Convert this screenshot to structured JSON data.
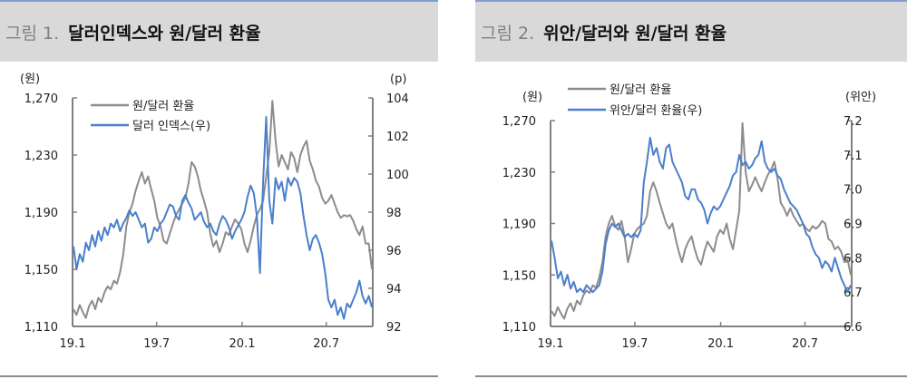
{
  "figures": [
    {
      "fig_num": "그림 1.",
      "title": "달러인덱스와 원/달러 환율"
    },
    {
      "fig_num": "그림 2.",
      "title": "위안/달러와 원/달러 환율"
    }
  ],
  "colors": {
    "krw": "#8c8c8c",
    "blue": "#4a7fcb",
    "axis": "#808080",
    "title_bg": "#d9d9d9",
    "title_border": "#7f9fd0"
  },
  "chart_data": [
    {
      "type": "line",
      "title": "달러인덱스와 원/달러 환율",
      "xlabel": "",
      "ylabel_left": "(원)",
      "ylabel_right": "(p)",
      "x_ticks": [
        "19.1",
        "19.7",
        "20.1",
        "20.7"
      ],
      "y_left_ticks": [
        "1,110",
        "1,150",
        "1,190",
        "1,230",
        "1,270"
      ],
      "y_left_range": [
        1110,
        1270
      ],
      "y_right_ticks": [
        "92",
        "94",
        "96",
        "98",
        "100",
        "102",
        "104"
      ],
      "y_right_range": [
        92,
        104
      ],
      "legend_position": "top-left",
      "grid": false,
      "series": [
        {
          "name": "원/달러 환율",
          "axis": "left",
          "color": "#8c8c8c",
          "values": [
            1122,
            1118,
            1125,
            1120,
            1116,
            1124,
            1128,
            1122,
            1130,
            1127,
            1134,
            1138,
            1136,
            1142,
            1140,
            1148,
            1160,
            1180,
            1190,
            1196,
            1205,
            1212,
            1218,
            1210,
            1215,
            1206,
            1198,
            1186,
            1180,
            1170,
            1168,
            1175,
            1182,
            1188,
            1192,
            1196,
            1200,
            1210,
            1225,
            1222,
            1215,
            1205,
            1198,
            1190,
            1175,
            1166,
            1170,
            1162,
            1168,
            1176,
            1174,
            1180,
            1185,
            1182,
            1178,
            1168,
            1162,
            1170,
            1180,
            1188,
            1192,
            1198,
            1215,
            1232,
            1268,
            1240,
            1222,
            1230,
            1225,
            1220,
            1232,
            1228,
            1218,
            1230,
            1236,
            1240,
            1226,
            1220,
            1212,
            1208,
            1200,
            1196,
            1198,
            1202,
            1196,
            1190,
            1186,
            1188,
            1187,
            1188,
            1184,
            1178,
            1174,
            1180,
            1168,
            1168,
            1150
          ]
        },
        {
          "name": "달러 인덱스(우)",
          "axis": "right",
          "color": "#4a7fcb",
          "values": [
            96.2,
            95.0,
            95.8,
            95.4,
            96.4,
            96.0,
            96.8,
            96.2,
            97.0,
            96.5,
            97.2,
            96.8,
            97.4,
            97.2,
            97.6,
            97.0,
            97.4,
            97.7,
            98.1,
            97.8,
            98.0,
            97.6,
            97.2,
            97.4,
            96.4,
            96.6,
            97.2,
            97.0,
            97.4,
            97.6,
            98.0,
            98.4,
            98.3,
            97.8,
            97.6,
            98.6,
            98.9,
            98.5,
            98.2,
            97.6,
            97.8,
            98.0,
            97.5,
            97.2,
            97.4,
            97.0,
            96.8,
            97.4,
            97.8,
            97.6,
            97.2,
            96.6,
            97.0,
            97.3,
            97.6,
            98.0,
            98.8,
            99.4,
            99.0,
            97.8,
            94.8,
            99.6,
            103.0,
            98.6,
            97.4,
            99.8,
            99.2,
            99.6,
            98.6,
            99.8,
            99.4,
            99.8,
            99.6,
            99.0,
            97.8,
            96.8,
            96.0,
            96.6,
            96.8,
            96.4,
            95.8,
            94.8,
            93.4,
            93.0,
            93.4,
            92.6,
            93.0,
            92.4,
            93.2,
            93.0,
            93.4,
            93.8,
            94.4,
            93.6,
            93.2,
            93.6,
            93.0
          ]
        }
      ]
    },
    {
      "type": "line",
      "title": "위안/달러와 원/달러 환율",
      "xlabel": "",
      "ylabel_left": "(원)",
      "ylabel_right": "(위안)",
      "x_ticks": [
        "19.1",
        "19.7",
        "20.1",
        "20.7"
      ],
      "y_left_ticks": [
        "1,110",
        "1,150",
        "1,190",
        "1,230",
        "1,270"
      ],
      "y_left_range": [
        1110,
        1270
      ],
      "y_right_ticks": [
        "6.6",
        "6.7",
        "6.8",
        "6.9",
        "7.0",
        "7.1",
        "7.2"
      ],
      "y_right_range": [
        6.6,
        7.2
      ],
      "legend_position": "top-left",
      "grid": false,
      "series": [
        {
          "name": "원/달러 환율",
          "axis": "left",
          "color": "#8c8c8c",
          "values": [
            1122,
            1118,
            1125,
            1120,
            1116,
            1124,
            1128,
            1122,
            1130,
            1127,
            1134,
            1138,
            1136,
            1142,
            1140,
            1148,
            1160,
            1180,
            1190,
            1196,
            1188,
            1185,
            1192,
            1180,
            1160,
            1170,
            1182,
            1186,
            1188,
            1190,
            1196,
            1215,
            1222,
            1215,
            1206,
            1198,
            1190,
            1186,
            1190,
            1178,
            1168,
            1160,
            1170,
            1176,
            1180,
            1170,
            1162,
            1158,
            1168,
            1176,
            1172,
            1168,
            1180,
            1185,
            1182,
            1190,
            1178,
            1170,
            1185,
            1200,
            1268,
            1230,
            1215,
            1220,
            1226,
            1220,
            1215,
            1222,
            1228,
            1232,
            1238,
            1225,
            1206,
            1202,
            1196,
            1202,
            1196,
            1192,
            1188,
            1190,
            1186,
            1184,
            1188,
            1186,
            1188,
            1192,
            1190,
            1178,
            1176,
            1170,
            1172,
            1168,
            1160,
            1162,
            1150
          ]
        },
        {
          "name": "위안/달러 환율(우)",
          "axis": "right",
          "color": "#4a7fcb",
          "values": [
            6.85,
            6.8,
            6.74,
            6.76,
            6.72,
            6.75,
            6.71,
            6.73,
            6.7,
            6.71,
            6.7,
            6.72,
            6.71,
            6.7,
            6.71,
            6.72,
            6.76,
            6.84,
            6.88,
            6.9,
            6.89,
            6.9,
            6.88,
            6.86,
            6.87,
            6.86,
            6.87,
            6.86,
            6.88,
            7.02,
            7.08,
            7.15,
            7.1,
            7.12,
            7.08,
            7.06,
            7.12,
            7.13,
            7.08,
            7.06,
            7.04,
            7.02,
            6.98,
            6.97,
            7.0,
            7.0,
            6.97,
            6.96,
            6.94,
            6.9,
            6.93,
            6.95,
            6.94,
            6.95,
            6.97,
            6.99,
            7.01,
            7.04,
            7.05,
            7.1,
            7.07,
            7.08,
            7.06,
            7.07,
            7.09,
            7.1,
            7.14,
            7.08,
            7.06,
            7.05,
            7.06,
            7.04,
            7.03,
            7.0,
            6.98,
            6.96,
            6.95,
            6.94,
            6.92,
            6.9,
            6.87,
            6.86,
            6.83,
            6.81,
            6.8,
            6.77,
            6.79,
            6.78,
            6.76,
            6.8,
            6.77,
            6.74,
            6.72,
            6.7,
            6.72
          ]
        }
      ]
    }
  ]
}
